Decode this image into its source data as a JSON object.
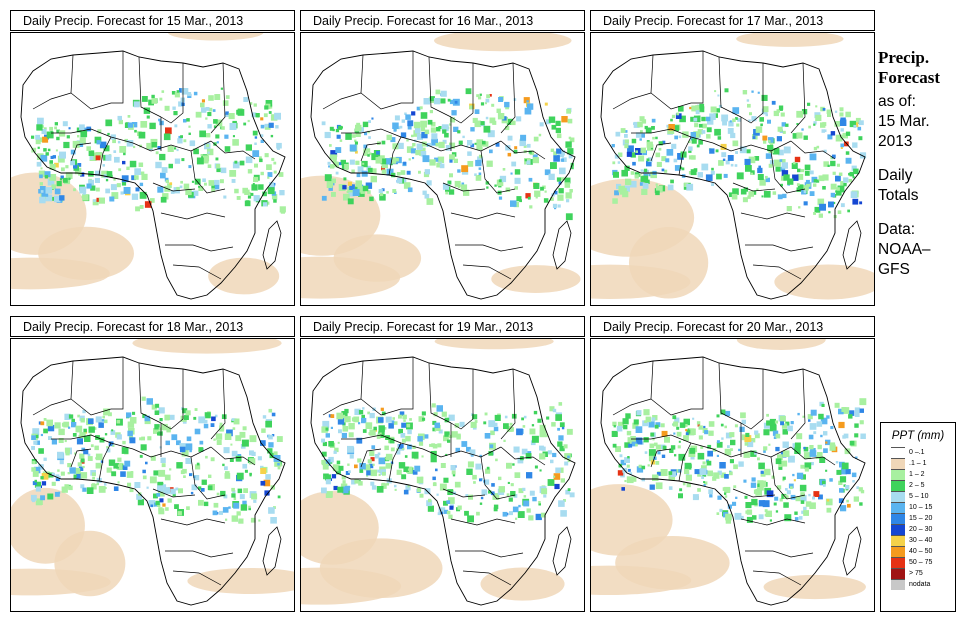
{
  "panels": [
    {
      "title": "Daily Precip. Forecast for  15 Mar., 2013",
      "variant": 0
    },
    {
      "title": "Daily Precip. Forecast for  16 Mar., 2013",
      "variant": 1
    },
    {
      "title": "Daily Precip. Forecast for  17 Mar., 2013",
      "variant": 2
    },
    {
      "title": "Daily Precip. Forecast for  18 Mar., 2013",
      "variant": 3
    },
    {
      "title": "Daily Precip. Forecast for  19 Mar., 2013",
      "variant": 4
    },
    {
      "title": "Daily Precip. Forecast for  20 Mar., 2013",
      "variant": 5
    }
  ],
  "side": {
    "heading1": "Precip.",
    "heading2": "Forecast",
    "asof1": "as of:",
    "asof2": "15 Mar.",
    "asof3": "2013",
    "daily1": "Daily",
    "daily2": "Totals",
    "data1": "Data:",
    "data2": "NOAA–",
    "data3": "GFS"
  },
  "legend": {
    "title": "PPT (mm)",
    "items": [
      {
        "label": "0 –.1",
        "color": "#ffffff"
      },
      {
        "label": ".1 – 1",
        "color": "#f0d7b8"
      },
      {
        "label": "1 – 2",
        "color": "#a8f0a0"
      },
      {
        "label": "2 – 5",
        "color": "#3fd35c"
      },
      {
        "label": "5 – 10",
        "color": "#a8dcf0"
      },
      {
        "label": "10 – 15",
        "color": "#5ab4f0"
      },
      {
        "label": "15 – 20",
        "color": "#2f86e6"
      },
      {
        "label": "20 – 30",
        "color": "#1446d2"
      },
      {
        "label": "30 – 40",
        "color": "#f5d24a"
      },
      {
        "label": "40 – 50",
        "color": "#f59b1e"
      },
      {
        "label": "50 – 75",
        "color": "#e63214"
      },
      {
        "label": "> 75",
        "color": "#a01414"
      },
      {
        "label": "nodata",
        "color": "#c8c8c8"
      }
    ]
  }
}
